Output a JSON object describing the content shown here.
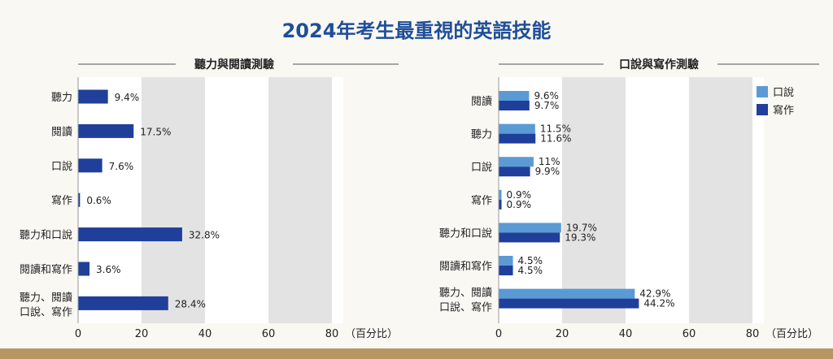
{
  "page": {
    "title": "2024年考生最重視的英語技能"
  },
  "chart_data": [
    {
      "type": "bar",
      "orientation": "horizontal",
      "title": "聽力與閱讀測驗",
      "categories": [
        [
          "聽力"
        ],
        [
          "閱讀"
        ],
        [
          "口說"
        ],
        [
          "寫作"
        ],
        [
          "聽力和口說"
        ],
        [
          "閱讀和寫作"
        ],
        [
          "聽力、閱讀",
          "口說、寫作"
        ]
      ],
      "series": [
        {
          "name": "",
          "values": [
            9.4,
            17.5,
            7.6,
            0.6,
            32.8,
            3.6,
            28.4
          ],
          "labels": [
            "9.4%",
            "17.5%",
            "7.6%",
            "0.6%",
            "32.8%",
            "3.6%",
            "28.4%"
          ],
          "color": "#1f3f9a"
        }
      ],
      "xlim": [
        0,
        80
      ],
      "xticks": [
        "0",
        "20",
        "40",
        "60",
        "80"
      ],
      "xlabel": "（百分比）",
      "legend": null
    },
    {
      "type": "bar",
      "orientation": "horizontal",
      "title": "口說與寫作測驗",
      "categories": [
        [
          "閱讀"
        ],
        [
          "聽力"
        ],
        [
          "口說"
        ],
        [
          "寫作"
        ],
        [
          "聽力和口說"
        ],
        [
          "閱讀和寫作"
        ],
        [
          "聽力、閱讀",
          "口說、寫作"
        ]
      ],
      "series": [
        {
          "name": "口說",
          "values": [
            9.6,
            11.5,
            11,
            0.9,
            19.7,
            4.5,
            42.9
          ],
          "labels": [
            "9.6%",
            "11.5%",
            "11%",
            "0.9%",
            "19.7%",
            "4.5%",
            "42.9%"
          ],
          "color": "#5b9bd5"
        },
        {
          "name": "寫作",
          "values": [
            9.7,
            11.6,
            9.9,
            0.9,
            19.3,
            4.5,
            44.2
          ],
          "labels": [
            "9.7%",
            "11.6%",
            "9.9%",
            "0.9%",
            "19.3%",
            "4.5%",
            "44.2%"
          ],
          "color": "#1f3f9a"
        }
      ],
      "xlim": [
        0,
        80
      ],
      "xticks": [
        "0",
        "20",
        "40",
        "60",
        "80"
      ],
      "xlabel": "（百分比）",
      "legend": "top-right"
    }
  ]
}
